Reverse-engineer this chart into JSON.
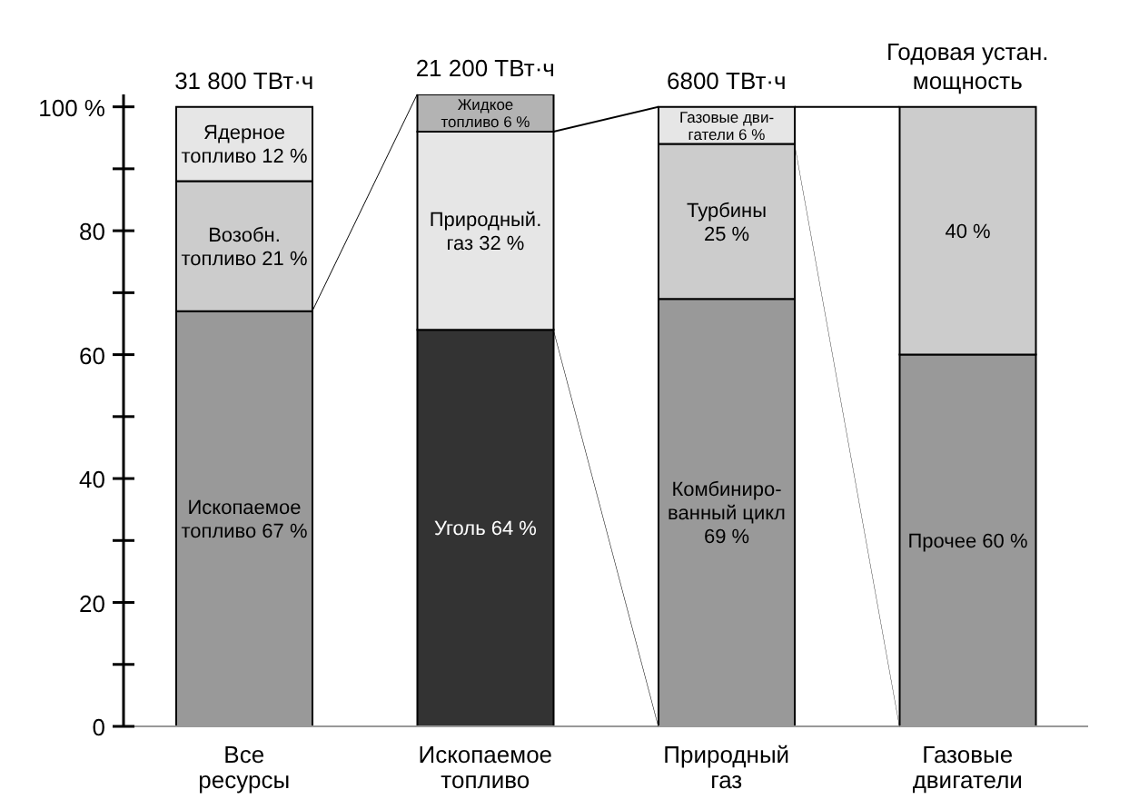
{
  "chart_data": {
    "type": "bar",
    "stacked": true,
    "categories": [
      "Все ресурсы",
      "Ископаемое топливо",
      "Природный газ",
      "Газовые двигатели"
    ],
    "series": [
      {
        "colors": [
          "#999999",
          "#333333",
          "#999999",
          "#999999"
        ],
        "values": [
          67,
          64,
          69,
          60
        ],
        "value_labels": [
          "Ископаемое\nтопливо 67 %",
          "Уголь 64 %",
          "Комбиниро-\nванный цикл\n69 %",
          "Прочее  60 %"
        ]
      },
      {
        "colors": [
          "#cccccc",
          "#e6e6e6",
          "#cccccc",
          "#cccccc"
        ],
        "values": [
          21,
          32,
          25,
          40
        ],
        "value_labels": [
          "Возобн.\nтопливо 21 %",
          "Природный.\nгаз 32 %",
          "Турбины\n25 %",
          "40 %"
        ]
      },
      {
        "colors": [
          "#e6e6e6",
          "#b3b3b3",
          "#e6e6e6",
          null
        ],
        "values": [
          12,
          6,
          6,
          null
        ],
        "value_labels": [
          "Ядерное\nтопливо 12 %",
          "Жидкое\nтопливо 6 %",
          "Газовые дви-\nгатели 6 %",
          null
        ]
      }
    ],
    "annotations": [
      "31 800 ТВт·ч",
      "21 200 ТВт·ч",
      "6800 ТВт·ч",
      "Годовая устан.\nмощность"
    ],
    "ylim": [
      0,
      102
    ],
    "yticks": [
      0,
      {
        "value": 10,
        "label": null
      },
      20,
      {
        "value": 30,
        "label": null
      },
      40,
      {
        "value": 50,
        "label": null
      },
      60,
      {
        "value": 70,
        "label": null
      },
      80,
      {
        "value": 90,
        "label": null
      },
      {
        "value": 100,
        "label": "100 %"
      }
    ],
    "grid": false,
    "legend": false
  }
}
